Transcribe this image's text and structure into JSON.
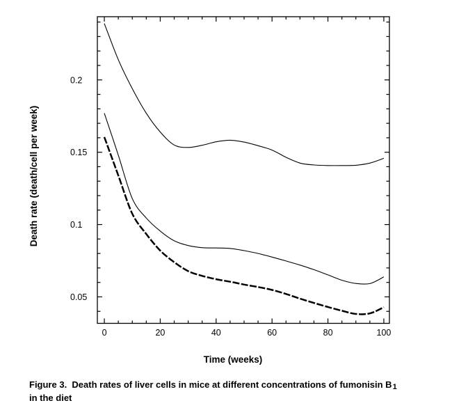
{
  "figure": {
    "caption": {
      "line1_prefix": "Figure 3.  Death rates of liver cells in mice at different concentrations of fumonisin B",
      "subscript": "1",
      "line2": "in the diet"
    }
  },
  "chart_data": {
    "type": "line",
    "title": "",
    "xlabel": "Time (weeks)",
    "ylabel": "Death rate (death/cell per week)",
    "background_color": "#ffffff",
    "line_color": "#000000",
    "grid": false,
    "legend": "none",
    "frame": "full box with inward ticks",
    "x_range": [
      -2.5,
      102
    ],
    "y_range": [
      0.0317,
      0.2437
    ],
    "x_major_ticks": [
      0,
      20,
      40,
      60,
      80,
      100
    ],
    "x_minor_step": 5,
    "y_major_ticks": [
      0.05,
      0.1,
      0.15,
      0.2
    ],
    "y_major_tick_labels": [
      "0.05",
      "0.1",
      "0.15",
      "0.2"
    ],
    "y_minor_step": 0.01,
    "x": [
      0,
      5,
      10,
      15,
      20,
      25,
      30,
      35,
      40,
      45,
      50,
      55,
      60,
      65,
      70,
      75,
      80,
      85,
      90,
      95,
      100
    ],
    "series": [
      {
        "id": "upper-curve",
        "description": "thin solid line, highest death rate",
        "stroke_width": 1.1,
        "dash": null,
        "values": [
          0.239,
          0.214,
          0.194,
          0.177,
          0.164,
          0.155,
          0.1533,
          0.1548,
          0.1572,
          0.1583,
          0.157,
          0.1545,
          0.1515,
          0.1465,
          0.1425,
          0.1412,
          0.1408,
          0.1408,
          0.141,
          0.1425,
          0.1458
        ]
      },
      {
        "id": "middle-curve",
        "description": "thin solid line, intermediate death rate",
        "stroke_width": 1.1,
        "dash": null,
        "values": [
          0.177,
          0.148,
          0.118,
          0.1045,
          0.0955,
          0.0888,
          0.0855,
          0.084,
          0.0838,
          0.0835,
          0.082,
          0.08,
          0.0775,
          0.0748,
          0.072,
          0.0688,
          0.0652,
          0.0615,
          0.0593,
          0.0592,
          0.0638
        ]
      },
      {
        "id": "lower-curve",
        "description": "thick dashed line, lowest death rate",
        "stroke_width": 2.5,
        "dash": "10 2.5",
        "values": [
          0.1605,
          0.134,
          0.1075,
          0.0935,
          0.082,
          0.074,
          0.0678,
          0.0645,
          0.0622,
          0.0605,
          0.0585,
          0.0568,
          0.0548,
          0.052,
          0.0488,
          0.0458,
          0.043,
          0.0404,
          0.0382,
          0.0386,
          0.0428
        ]
      }
    ]
  }
}
